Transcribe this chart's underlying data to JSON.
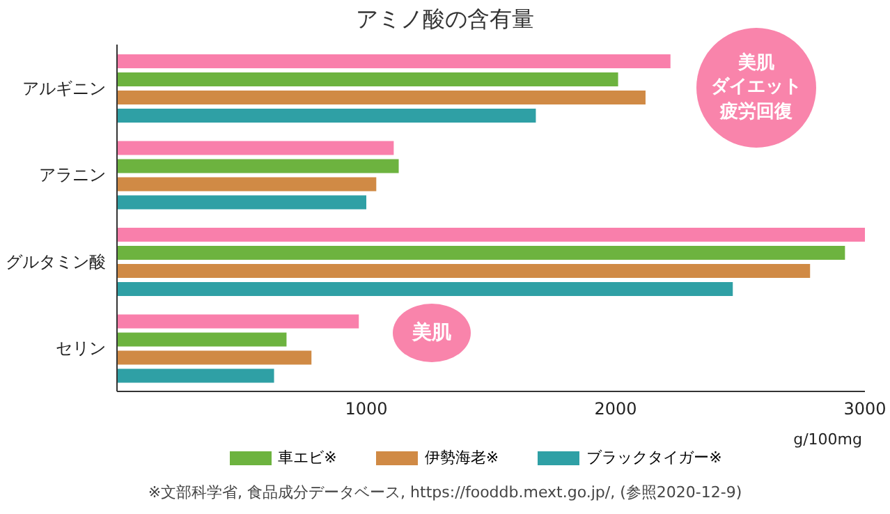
{
  "chart_data": {
    "type": "bar",
    "orientation": "horizontal",
    "title": "アミノ酸の含有量",
    "xlabel": "g/100mg",
    "categories": [
      "アルギニン",
      "アラニン",
      "グルタミン酸",
      "セリン"
    ],
    "series": [
      {
        "color": "#f97fab",
        "values": [
          2220,
          1110,
          3000,
          970
        ]
      },
      {
        "name": "車エビ※",
        "color": "#6db33f",
        "values": [
          2010,
          1130,
          2920,
          680
        ]
      },
      {
        "name": "伊勢海老※",
        "color": "#d08a45",
        "values": [
          2120,
          1040,
          2780,
          780
        ]
      },
      {
        "name": "ブラックタイガー※",
        "color": "#2fa0a5",
        "values": [
          1680,
          1000,
          2470,
          630
        ]
      }
    ],
    "xlim": [
      0,
      3000
    ],
    "xticks": [
      1000,
      2000,
      3000
    ],
    "grid": false,
    "legend": "bottom",
    "annotations": [
      "美肌",
      "ダイエット",
      "疲労回復",
      "美肌",
      "※文部科学省, 食品成分データベース, https://fooddb.mext.go.jp/, (参照2020-12-9)"
    ]
  }
}
